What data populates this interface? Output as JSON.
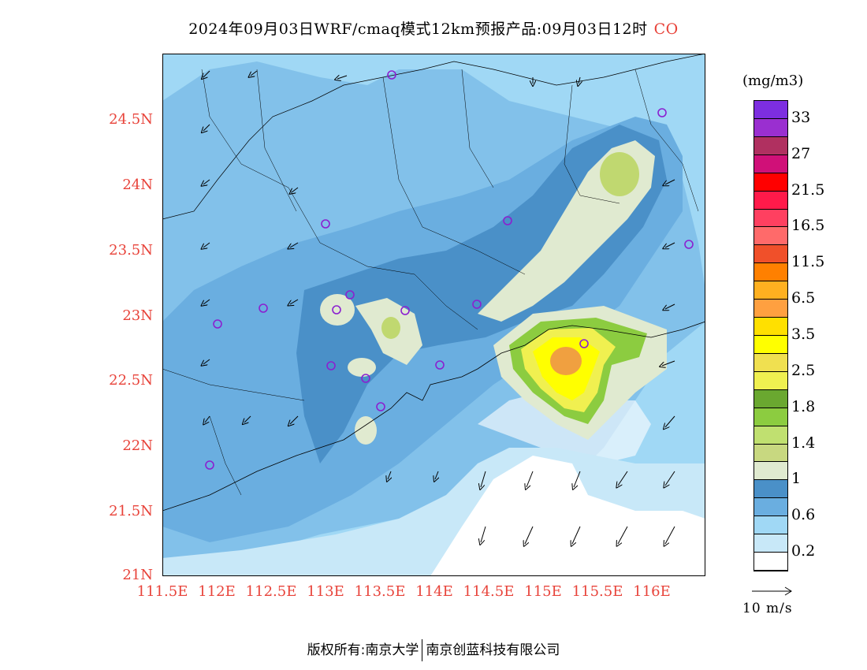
{
  "title": {
    "text": "2024年09月03日WRF/cmaq模式12km预报产品:09月03日12时",
    "species": "CO"
  },
  "axes": {
    "lat_labels": [
      "24.5N",
      "24N",
      "23.5N",
      "23N",
      "22.5N",
      "22N",
      "21.5N",
      "21N"
    ],
    "lon_labels": [
      "111.5E",
      "112E",
      "112.5E",
      "113E",
      "113.5E",
      "114E",
      "114.5E",
      "115E",
      "115.5E",
      "116E"
    ]
  },
  "colorbar": {
    "unit": "(mg/m3)",
    "labels": [
      "33",
      "27",
      "21.5",
      "16.5",
      "11.5",
      "6.5",
      "3.5",
      "2.5",
      "1.8",
      "1.4",
      "1",
      "0.6",
      "0.2"
    ],
    "colors": [
      "#7d2ee0",
      "#9a2fd0",
      "#b03060",
      "#d01078",
      "#ff0000",
      "#ff1a4a",
      "#ff4060",
      "#ff6a6a",
      "#f0502a",
      "#ff8000",
      "#ffb020",
      "#ffa040",
      "#ffe000",
      "#ffff00",
      "#f0e050",
      "#f0f050",
      "#6aa830",
      "#8ccc40",
      "#c0e070",
      "#c8d880",
      "#e0ead0",
      "#4a90c8",
      "#6aaee0",
      "#a0d8f5",
      "#c8e8f8",
      "#ffffff"
    ]
  },
  "vector_legend": {
    "label": "10 m/s"
  },
  "footer": {
    "left": "版权所有:南京大学",
    "right": "南京创蓝科技有限公司"
  }
}
